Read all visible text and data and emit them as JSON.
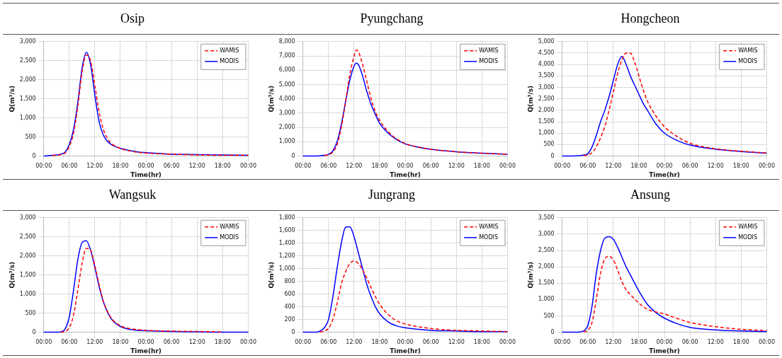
{
  "chart_data": [
    {
      "type": "line",
      "title": "Osip",
      "xlabel": "Time(hr)",
      "ylabel": "Q(m³/s)",
      "grid": true,
      "legend": "top right",
      "marker": "none",
      "xlim": [
        "2000-01-01T00:00",
        "2000-01-03T00:00"
      ],
      "xticks": [
        {
          "value": "2000-01-01T00:00",
          "label": "00:00"
        },
        {
          "value": "2000-01-01T06:00",
          "label": "06:00"
        },
        {
          "value": "2000-01-01T12:00",
          "label": "12:00"
        },
        {
          "value": "2000-01-01T18:00",
          "label": "18:00"
        },
        {
          "value": "2000-01-02T00:00",
          "label": "00:00"
        },
        {
          "value": "2000-01-02T06:00",
          "label": "06:00"
        },
        {
          "value": "2000-01-02T12:00",
          "label": "12:00"
        },
        {
          "value": "2000-01-02T18:00",
          "label": "18:00"
        },
        {
          "value": "2000-01-03T00:00",
          "label": "00:00"
        }
      ],
      "ylim": [
        0,
        3000
      ],
      "yticks": [
        {
          "value": 0,
          "label": "0"
        },
        {
          "value": 500,
          "label": "500"
        },
        {
          "value": 1000,
          "label": "1,000"
        },
        {
          "value": 1500,
          "label": "1,500"
        },
        {
          "value": 2000,
          "label": "2,000"
        },
        {
          "value": 2500,
          "label": "2,500"
        },
        {
          "value": 3000,
          "label": "3,000"
        }
      ],
      "x": [
        "2000-01-01T00:00",
        "2000-01-01T02:00",
        "2000-01-01T04:00",
        "2000-01-01T05:00",
        "2000-01-01T06:00",
        "2000-01-01T07:00",
        "2000-01-01T08:00",
        "2000-01-01T09:00",
        "2000-01-01T10:00",
        "2000-01-01T11:00",
        "2000-01-01T12:00",
        "2000-01-01T13:00",
        "2000-01-01T14:00",
        "2000-01-01T15:00",
        "2000-01-01T16:00",
        "2000-01-01T17:00",
        "2000-01-01T18:00",
        "2000-01-01T20:00",
        "2000-01-01T22:00",
        "2000-01-02T00:00",
        "2000-01-02T03:00",
        "2000-01-02T06:00",
        "2000-01-02T12:00",
        "2000-01-02T18:00",
        "2000-01-03T00:00"
      ],
      "series": [
        {
          "name": "WAMIS",
          "color": "#ff0000",
          "line_style": "dashed",
          "values": [
            null,
            10,
            40,
            80,
            250,
            600,
            1300,
            2200,
            2650,
            2500,
            1850,
            1150,
            700,
            450,
            320,
            250,
            200,
            140,
            100,
            80,
            60,
            50,
            30,
            20,
            20
          ]
        },
        {
          "name": "MODIS",
          "color": "#0000ff",
          "line_style": "solid",
          "values": [
            0,
            20,
            50,
            100,
            300,
            700,
            1400,
            2300,
            2720,
            2400,
            1600,
            900,
            550,
            380,
            290,
            240,
            200,
            150,
            110,
            90,
            70,
            50,
            40,
            30,
            20
          ]
        }
      ]
    },
    {
      "type": "line",
      "title": "Pyungchang",
      "xlabel": "Time(hr)",
      "ylabel": "Q(m³/s)",
      "grid": true,
      "legend": "top right",
      "marker": "none",
      "xlim": [
        "2000-01-01T00:00",
        "2000-01-03T00:00"
      ],
      "xticks": [
        {
          "value": "2000-01-01T00:00",
          "label": "00:00"
        },
        {
          "value": "2000-01-01T06:00",
          "label": "06:00"
        },
        {
          "value": "2000-01-01T12:00",
          "label": "12:00"
        },
        {
          "value": "2000-01-01T18:00",
          "label": "18:00"
        },
        {
          "value": "2000-01-02T00:00",
          "label": "00:00"
        },
        {
          "value": "2000-01-02T06:00",
          "label": "06:00"
        },
        {
          "value": "2000-01-02T12:00",
          "label": "12:00"
        },
        {
          "value": "2000-01-02T18:00",
          "label": "18:00"
        },
        {
          "value": "2000-01-03T00:00",
          "label": "00:00"
        }
      ],
      "ylim": [
        0,
        8000
      ],
      "yticks": [
        {
          "value": 0,
          "label": "0"
        },
        {
          "value": 1000,
          "label": "1,000"
        },
        {
          "value": 2000,
          "label": "2,000"
        },
        {
          "value": 3000,
          "label": "3,000"
        },
        {
          "value": 4000,
          "label": "4,000"
        },
        {
          "value": 5000,
          "label": "5,000"
        },
        {
          "value": 6000,
          "label": "6,000"
        },
        {
          "value": 7000,
          "label": "7,000"
        },
        {
          "value": 8000,
          "label": "8,000"
        }
      ],
      "x": [
        "2000-01-01T00:00",
        "2000-01-01T04:00",
        "2000-01-01T05:00",
        "2000-01-01T06:00",
        "2000-01-01T07:00",
        "2000-01-01T08:00",
        "2000-01-01T09:00",
        "2000-01-01T10:00",
        "2000-01-01T11:00",
        "2000-01-01T12:00",
        "2000-01-01T12:30",
        "2000-01-01T13:00",
        "2000-01-01T14:00",
        "2000-01-01T15:00",
        "2000-01-01T16:00",
        "2000-01-01T17:00",
        "2000-01-01T18:00",
        "2000-01-01T20:00",
        "2000-01-01T22:00",
        "2000-01-02T00:00",
        "2000-01-02T03:00",
        "2000-01-02T06:00",
        "2000-01-02T12:00",
        "2000-01-02T18:00",
        "2000-01-03T00:00"
      ],
      "series": [
        {
          "name": "WAMIS",
          "color": "#ff0000",
          "line_style": "dashed",
          "values": [
            null,
            null,
            40,
            100,
            280,
            800,
            2000,
            3800,
            5700,
            7000,
            7400,
            7300,
            6400,
            5200,
            4000,
            3100,
            2500,
            1700,
            1200,
            880,
            640,
            480,
            300,
            200,
            120
          ]
        },
        {
          "name": "MODIS",
          "color": "#0000ff",
          "line_style": "solid",
          "values": [
            0,
            20,
            50,
            120,
            350,
            1000,
            2200,
            3800,
            5300,
            6300,
            6500,
            6400,
            5600,
            4500,
            3600,
            2900,
            2300,
            1600,
            1150,
            850,
            620,
            470,
            300,
            200,
            130
          ]
        }
      ]
    },
    {
      "type": "line",
      "title": "Hongcheon",
      "xlabel": "Time(hr)",
      "ylabel": "Q(m³/s)",
      "grid": true,
      "legend": "top right",
      "marker": "none",
      "xlim": [
        "2000-01-01T00:00",
        "2000-01-03T00:00"
      ],
      "xticks": [
        {
          "value": "2000-01-01T00:00",
          "label": "00:00"
        },
        {
          "value": "2000-01-01T06:00",
          "label": "06:00"
        },
        {
          "value": "2000-01-01T12:00",
          "label": "12:00"
        },
        {
          "value": "2000-01-01T18:00",
          "label": "18:00"
        },
        {
          "value": "2000-01-02T00:00",
          "label": "00:00"
        },
        {
          "value": "2000-01-02T06:00",
          "label": "06:00"
        },
        {
          "value": "2000-01-02T12:00",
          "label": "12:00"
        },
        {
          "value": "2000-01-02T18:00",
          "label": "18:00"
        },
        {
          "value": "2000-01-03T00:00",
          "label": "00:00"
        }
      ],
      "ylim": [
        0,
        5000
      ],
      "yticks": [
        {
          "value": 0,
          "label": "0"
        },
        {
          "value": 500,
          "label": "500"
        },
        {
          "value": 1000,
          "label": "1,000"
        },
        {
          "value": 1500,
          "label": "1,500"
        },
        {
          "value": 2000,
          "label": "2,000"
        },
        {
          "value": 2500,
          "label": "2,500"
        },
        {
          "value": 3000,
          "label": "3,000"
        },
        {
          "value": 3500,
          "label": "3,500"
        },
        {
          "value": 4000,
          "label": "4,000"
        },
        {
          "value": 4500,
          "label": "4,500"
        },
        {
          "value": 5000,
          "label": "5,000"
        }
      ],
      "x": [
        "2000-01-01T00:00",
        "2000-01-01T04:00",
        "2000-01-01T05:00",
        "2000-01-01T06:00",
        "2000-01-01T07:00",
        "2000-01-01T08:00",
        "2000-01-01T09:00",
        "2000-01-01T10:00",
        "2000-01-01T11:00",
        "2000-01-01T12:00",
        "2000-01-01T13:00",
        "2000-01-01T14:00",
        "2000-01-01T15:00",
        "2000-01-01T16:00",
        "2000-01-01T17:00",
        "2000-01-01T18:00",
        "2000-01-01T19:00",
        "2000-01-01T20:00",
        "2000-01-01T22:00",
        "2000-01-02T00:00",
        "2000-01-02T03:00",
        "2000-01-02T06:00",
        "2000-01-02T12:00",
        "2000-01-02T18:00",
        "2000-01-03T00:00"
      ],
      "series": [
        {
          "name": "WAMIS",
          "color": "#ff0000",
          "line_style": "dashed",
          "values": [
            null,
            null,
            20,
            50,
            150,
            400,
            800,
            1300,
            2000,
            2800,
            3600,
            4200,
            4500,
            4500,
            4100,
            3500,
            2900,
            2400,
            1750,
            1280,
            850,
            560,
            320,
            210,
            140
          ]
        },
        {
          "name": "MODIS",
          "color": "#0000ff",
          "line_style": "solid",
          "values": [
            0,
            20,
            40,
            100,
            400,
            900,
            1500,
            2000,
            2600,
            3300,
            4000,
            4350,
            4000,
            3500,
            3100,
            2700,
            2300,
            2000,
            1400,
            1000,
            680,
            480,
            300,
            200,
            130
          ]
        }
      ]
    },
    {
      "type": "line",
      "title": "Wangsuk",
      "xlabel": "Time(hr)",
      "ylabel": "Q(m³/s)",
      "grid": true,
      "legend": "top right",
      "marker": "none",
      "xlim": [
        "2000-01-01T00:00",
        "2000-01-03T00:00"
      ],
      "xticks": [
        {
          "value": "2000-01-01T00:00",
          "label": "00:00"
        },
        {
          "value": "2000-01-01T06:00",
          "label": "06:00"
        },
        {
          "value": "2000-01-01T12:00",
          "label": "12:00"
        },
        {
          "value": "2000-01-01T18:00",
          "label": "18:00"
        },
        {
          "value": "2000-01-02T00:00",
          "label": "00:00"
        },
        {
          "value": "2000-01-02T06:00",
          "label": "06:00"
        },
        {
          "value": "2000-01-02T12:00",
          "label": "12:00"
        },
        {
          "value": "2000-01-02T18:00",
          "label": "18:00"
        },
        {
          "value": "2000-01-03T00:00",
          "label": "00:00"
        }
      ],
      "ylim": [
        0,
        3000
      ],
      "yticks": [
        {
          "value": 0,
          "label": "0"
        },
        {
          "value": 500,
          "label": "500"
        },
        {
          "value": 1000,
          "label": "1,000"
        },
        {
          "value": 1500,
          "label": "1,500"
        },
        {
          "value": 2000,
          "label": "2,000"
        },
        {
          "value": 2500,
          "label": "2,500"
        },
        {
          "value": 3000,
          "label": "3,000"
        }
      ],
      "x": [
        "2000-01-01T00:00",
        "2000-01-01T03:00",
        "2000-01-01T04:00",
        "2000-01-01T05:00",
        "2000-01-01T06:00",
        "2000-01-01T07:00",
        "2000-01-01T08:00",
        "2000-01-01T09:00",
        "2000-01-01T10:00",
        "2000-01-01T11:00",
        "2000-01-01T12:00",
        "2000-01-01T13:00",
        "2000-01-01T14:00",
        "2000-01-01T15:00",
        "2000-01-01T16:00",
        "2000-01-01T18:00",
        "2000-01-01T20:00",
        "2000-01-01T22:00",
        "2000-01-02T00:00",
        "2000-01-02T06:00",
        "2000-01-02T12:00",
        "2000-01-02T18:00",
        "2000-01-03T00:00"
      ],
      "series": [
        {
          "name": "WAMIS",
          "color": "#ff0000",
          "line_style": "dashed",
          "values": [
            null,
            null,
            0,
            20,
            120,
            450,
            1100,
            1800,
            2200,
            2150,
            1750,
            1250,
            820,
            540,
            350,
            170,
            100,
            70,
            50,
            30,
            20,
            10,
            null
          ]
        },
        {
          "name": "MODIS",
          "color": "#0000ff",
          "line_style": "solid",
          "values": [
            0,
            0,
            10,
            80,
            400,
            1100,
            1900,
            2350,
            2400,
            2150,
            1700,
            1200,
            800,
            520,
            330,
            150,
            80,
            50,
            40,
            20,
            10,
            0,
            0
          ]
        }
      ]
    },
    {
      "type": "line",
      "title": "Jungrang",
      "xlabel": "Time(hr)",
      "ylabel": "Q(m³/s)",
      "grid": true,
      "legend": "top right",
      "marker": "none",
      "xlim": [
        "2000-01-01T00:00",
        "2000-01-03T00:00"
      ],
      "xticks": [
        {
          "value": "2000-01-01T00:00",
          "label": "00:00"
        },
        {
          "value": "2000-01-01T06:00",
          "label": "06:00"
        },
        {
          "value": "2000-01-01T12:00",
          "label": "12:00"
        },
        {
          "value": "2000-01-01T18:00",
          "label": "18:00"
        },
        {
          "value": "2000-01-02T00:00",
          "label": "00:00"
        },
        {
          "value": "2000-01-02T06:00",
          "label": "06:00"
        },
        {
          "value": "2000-01-02T12:00",
          "label": "12:00"
        },
        {
          "value": "2000-01-02T18:00",
          "label": "18:00"
        },
        {
          "value": "2000-01-03T00:00",
          "label": "00:00"
        }
      ],
      "ylim": [
        0,
        1800
      ],
      "yticks": [
        {
          "value": 0,
          "label": "0"
        },
        {
          "value": 200,
          "label": "200"
        },
        {
          "value": 400,
          "label": "400"
        },
        {
          "value": 600,
          "label": "600"
        },
        {
          "value": 800,
          "label": "800"
        },
        {
          "value": 1000,
          "label": "1,000"
        },
        {
          "value": 1200,
          "label": "1,200"
        },
        {
          "value": 1400,
          "label": "1,400"
        },
        {
          "value": 1600,
          "label": "1,600"
        },
        {
          "value": 1800,
          "label": "1,800"
        }
      ],
      "x": [
        "2000-01-01T00:00",
        "2000-01-01T03:00",
        "2000-01-01T04:00",
        "2000-01-01T05:00",
        "2000-01-01T06:00",
        "2000-01-01T07:00",
        "2000-01-01T08:00",
        "2000-01-01T09:00",
        "2000-01-01T10:00",
        "2000-01-01T11:00",
        "2000-01-01T12:00",
        "2000-01-01T13:00",
        "2000-01-01T14:00",
        "2000-01-01T15:00",
        "2000-01-01T16:00",
        "2000-01-01T17:00",
        "2000-01-01T18:00",
        "2000-01-01T20:00",
        "2000-01-01T22:00",
        "2000-01-02T00:00",
        "2000-01-02T06:00",
        "2000-01-02T12:00",
        "2000-01-02T18:00",
        "2000-01-03T00:00"
      ],
      "series": [
        {
          "name": "WAMIS",
          "color": "#ff0000",
          "line_style": "dashed",
          "values": [
            null,
            null,
            0,
            20,
            60,
            200,
            450,
            750,
            950,
            1080,
            1120,
            1080,
            980,
            850,
            700,
            560,
            440,
            280,
            180,
            130,
            60,
            30,
            20,
            10
          ]
        },
        {
          "name": "MODIS",
          "color": "#0000ff",
          "line_style": "solid",
          "values": [
            0,
            0,
            20,
            70,
            200,
            550,
            1000,
            1400,
            1650,
            1660,
            1500,
            1250,
            1000,
            750,
            560,
            400,
            290,
            160,
            100,
            70,
            30,
            20,
            10,
            10
          ]
        }
      ]
    },
    {
      "type": "line",
      "title": "Ansung",
      "xlabel": "Time(hr)",
      "ylabel": "Q(m³/s)",
      "grid": true,
      "legend": "top right",
      "marker": "none",
      "xlim": [
        "2000-01-01T00:00",
        "2000-01-03T00:00"
      ],
      "xticks": [
        {
          "value": "2000-01-01T00:00",
          "label": "00:00"
        },
        {
          "value": "2000-01-01T06:00",
          "label": "06:00"
        },
        {
          "value": "2000-01-01T12:00",
          "label": "12:00"
        },
        {
          "value": "2000-01-01T18:00",
          "label": "18:00"
        },
        {
          "value": "2000-01-02T00:00",
          "label": "00:00"
        },
        {
          "value": "2000-01-02T06:00",
          "label": "06:00"
        },
        {
          "value": "2000-01-02T12:00",
          "label": "12:00"
        },
        {
          "value": "2000-01-02T18:00",
          "label": "18:00"
        },
        {
          "value": "2000-01-03T00:00",
          "label": "00:00"
        }
      ],
      "ylim": [
        0,
        3500
      ],
      "yticks": [
        {
          "value": 0,
          "label": "0"
        },
        {
          "value": 500,
          "label": "500"
        },
        {
          "value": 1000,
          "label": "1,000"
        },
        {
          "value": 1500,
          "label": "1,500"
        },
        {
          "value": 2000,
          "label": "2,000"
        },
        {
          "value": 2500,
          "label": "2,500"
        },
        {
          "value": 3000,
          "label": "3,000"
        },
        {
          "value": 3500,
          "label": "3,500"
        }
      ],
      "x": [
        "2000-01-01T00:00",
        "2000-01-01T04:00",
        "2000-01-01T05:00",
        "2000-01-01T06:00",
        "2000-01-01T07:00",
        "2000-01-01T08:00",
        "2000-01-01T09:00",
        "2000-01-01T10:00",
        "2000-01-01T11:00",
        "2000-01-01T12:00",
        "2000-01-01T13:00",
        "2000-01-01T14:00",
        "2000-01-01T15:00",
        "2000-01-01T16:00",
        "2000-01-01T18:00",
        "2000-01-01T20:00",
        "2000-01-01T22:00",
        "2000-01-02T00:00",
        "2000-01-02T03:00",
        "2000-01-02T06:00",
        "2000-01-02T12:00",
        "2000-01-02T18:00",
        "2000-01-03T00:00"
      ],
      "series": [
        {
          "name": "WAMIS",
          "color": "#ff0000",
          "line_style": "dashed",
          "values": [
            null,
            null,
            10,
            60,
            300,
            1000,
            1800,
            2250,
            2320,
            2210,
            1900,
            1550,
            1300,
            1150,
            890,
            700,
            620,
            560,
            420,
            300,
            170,
            90,
            50
          ]
        },
        {
          "name": "MODIS",
          "color": "#0000ff",
          "line_style": "solid",
          "values": [
            0,
            10,
            40,
            200,
            800,
            1800,
            2500,
            2880,
            2920,
            2840,
            2600,
            2300,
            2000,
            1750,
            1260,
            850,
            600,
            430,
            260,
            150,
            70,
            40,
            20
          ]
        }
      ]
    }
  ]
}
